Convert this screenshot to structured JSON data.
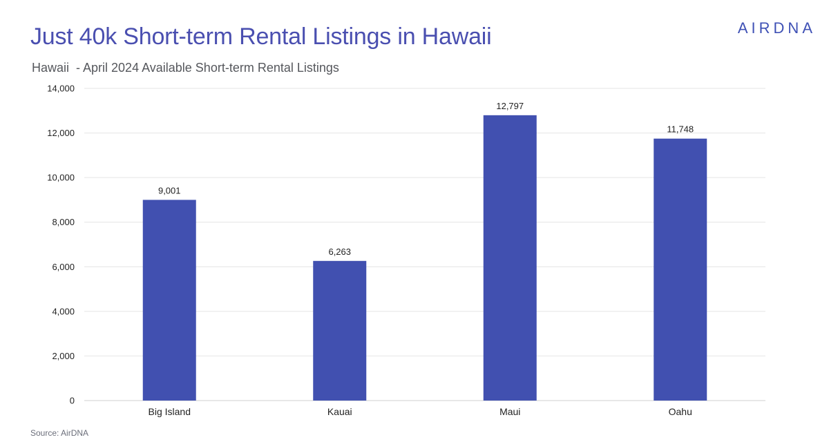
{
  "header": {
    "title": "Just 40k Short-term Rental Listings in Hawaii",
    "subtitle": "Hawaii  - April 2024 Available Short-term Rental Listings",
    "brand": "AIRDNA"
  },
  "footer": {
    "source": "Source: AirDNA"
  },
  "colors": {
    "bar": "#4150b0",
    "title": "#4a4fb0",
    "grid": "#e4e4e4"
  },
  "chart_data": {
    "type": "bar",
    "title": "Just 40k Short-term Rental Listings in Hawaii",
    "subtitle": "Hawaii  - April 2024 Available Short-term Rental Listings",
    "xlabel": "",
    "ylabel": "",
    "categories": [
      "Big Island",
      "Kauai",
      "Maui",
      "Oahu"
    ],
    "values": [
      9001,
      6263,
      12797,
      11748
    ],
    "data_labels": [
      "9,001",
      "6,263",
      "12,797",
      "11,748"
    ],
    "ylim": [
      0,
      14000
    ],
    "yticks": [
      0,
      2000,
      4000,
      6000,
      8000,
      10000,
      12000,
      14000
    ],
    "ytick_labels": [
      "0",
      "2,000",
      "4,000",
      "6,000",
      "8,000",
      "10,000",
      "12,000",
      "14,000"
    ],
    "grid": true,
    "legend": "none"
  }
}
